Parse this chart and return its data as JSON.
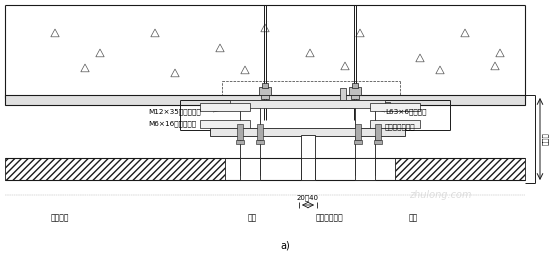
{
  "bg_color": "#ffffff",
  "line_color": "#1a1a1a",
  "title_label": "a)",
  "labels": {
    "M12": "M12×35不锈锂螺栓",
    "M6": "M6×16不锈锂螺栓",
    "L63": "L63×6镀锌角鄂",
    "stainless": "不锈锂连接螺钉",
    "terracotta": "陶土挪板",
    "longgu": "龙骨",
    "vertical": "垂直间隔龙骨",
    "hang": "挂件",
    "dim": "20～40"
  },
  "watermark": "zhulong.com",
  "right_label": "可调节"
}
